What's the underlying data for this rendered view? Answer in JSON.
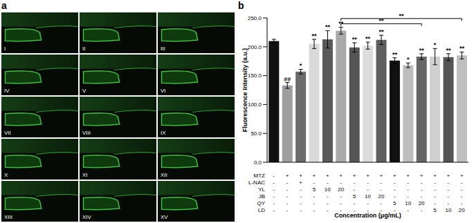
{
  "chart_data": {
    "type": "bar",
    "title": "b",
    "categories": [
      null,
      null,
      null,
      null,
      null,
      null,
      null,
      null,
      null,
      null,
      null,
      null,
      null,
      null,
      null
    ],
    "values": [
      210,
      133,
      157,
      205,
      213,
      228,
      199,
      202,
      212,
      176,
      168,
      183,
      183,
      182,
      185
    ],
    "errors": [
      3,
      5,
      4,
      8,
      15,
      6,
      8,
      6,
      8,
      5,
      4,
      5,
      14,
      6,
      6
    ],
    "colors": [
      "#111111",
      "#9e9e9e",
      "#6b6b6b",
      "#d9d9d9",
      "#5a5a5a",
      "#a9a9a9",
      "#555555",
      "#dcdcdc",
      "#5f5f5f",
      "#111111",
      "#bdbdbd",
      "#666666",
      "#d0d0d0",
      "#555555",
      "#bfbfbf"
    ],
    "significance": [
      null,
      "##",
      "*",
      "**",
      "**",
      "**",
      "**",
      "**",
      "**",
      "**",
      "*",
      "**",
      "*",
      "**",
      "**"
    ],
    "comparisons": [
      {
        "from": 5,
        "to": 11,
        "label": "**"
      },
      {
        "from": 5,
        "to": 14,
        "label": "**"
      }
    ],
    "ylim": [
      0,
      250
    ],
    "yticks": [
      {
        "value": 0,
        "label": "0.0"
      },
      {
        "value": 50,
        "label": "50.0"
      },
      {
        "value": 100,
        "label": "100.0"
      },
      {
        "value": 150,
        "label": "150.0"
      },
      {
        "value": 200,
        "label": "200.0"
      },
      {
        "value": 250,
        "label": "250.0"
      }
    ],
    "y_label": "Fluorescence Intensity (a.u.)",
    "x_label": "Concentration (μg/mL)",
    "treatments": [
      {
        "name": "MTZ",
        "cells": [
          "-",
          "+",
          "+",
          "+",
          "+",
          "+",
          "+",
          "+",
          "+",
          "+",
          "+",
          "+",
          "+",
          "+",
          "+"
        ]
      },
      {
        "name": "L-NAC",
        "cells": [
          "-",
          "-",
          "+",
          "-",
          "-",
          "-",
          "-",
          "-",
          "-",
          "-",
          "-",
          "-",
          "-",
          "-",
          "-"
        ]
      },
      {
        "name": "YL",
        "cells": [
          "-",
          "-",
          "-",
          "5",
          "10",
          "20",
          "-",
          "-",
          "-",
          "-",
          "-",
          "-",
          "-",
          "-",
          "-"
        ]
      },
      {
        "name": "JB",
        "cells": [
          "-",
          "-",
          "-",
          "-",
          "-",
          "-",
          "5",
          "10",
          "20",
          "-",
          "-",
          "-",
          "-",
          "-",
          "-"
        ]
      },
      {
        "name": "QY",
        "cells": [
          "-",
          "-",
          "-",
          "-",
          "-",
          "-",
          "-",
          "-",
          "-",
          "5",
          "10",
          "20",
          "-",
          "-",
          "-"
        ]
      },
      {
        "name": "LD",
        "cells": [
          "-",
          "-",
          "-",
          "-",
          "-",
          "-",
          "-",
          "-",
          "-",
          "-",
          "-",
          "-",
          "5",
          "10",
          "20"
        ]
      }
    ],
    "grid": false
  },
  "image_panel": {
    "label": "a",
    "panels": [
      "I",
      "II",
      "III",
      "IV",
      "V",
      "VI",
      "VII",
      "VIII",
      "IX",
      "X",
      "XI",
      "XII",
      "XIII",
      "XIV",
      "XV"
    ]
  }
}
